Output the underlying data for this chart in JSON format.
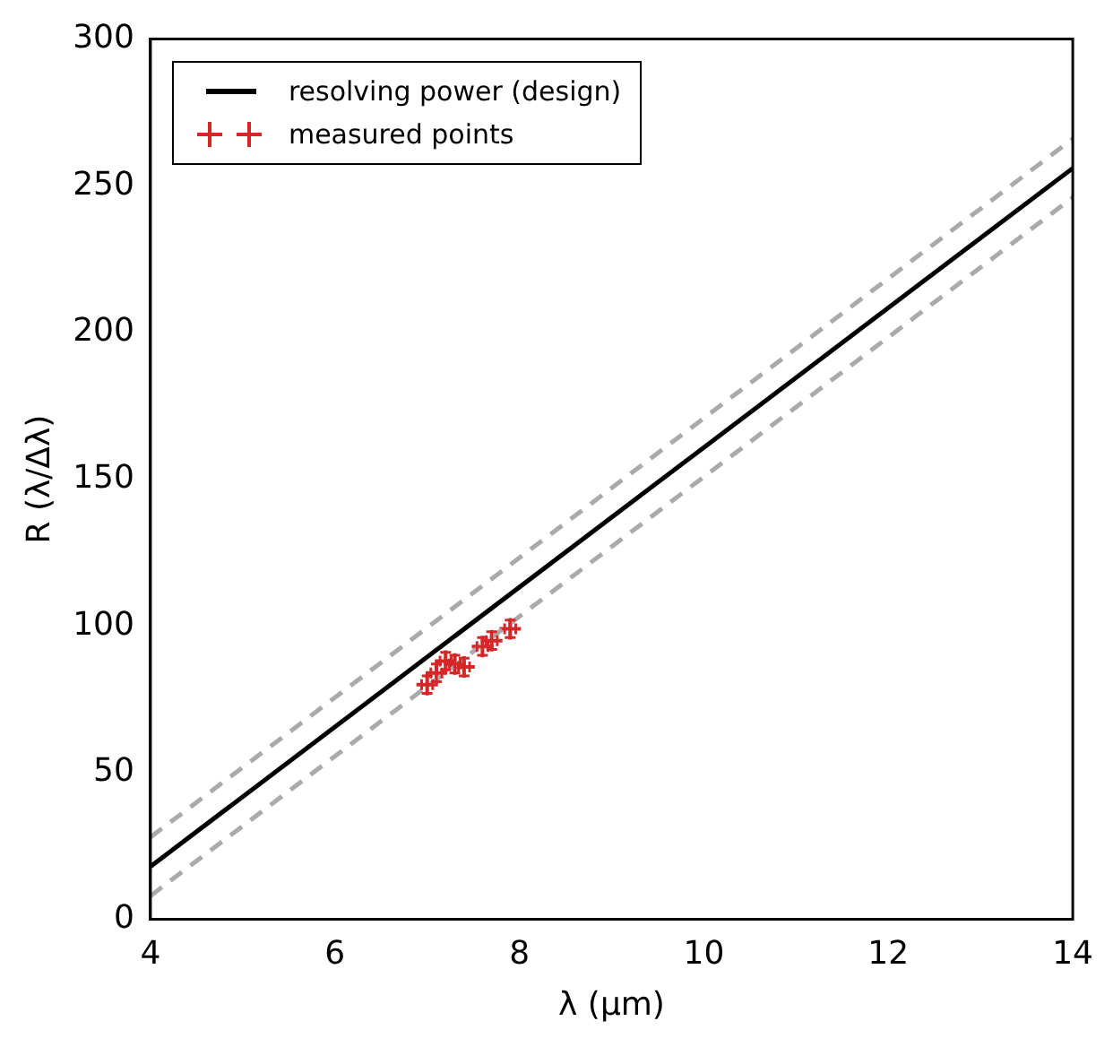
{
  "chart_data": {
    "type": "line",
    "xlabel": "λ (μm)",
    "ylabel": "R (λ/Δλ)",
    "xlim": [
      4,
      14
    ],
    "ylim": [
      0,
      300
    ],
    "xticks": [
      4,
      6,
      8,
      10,
      12,
      14
    ],
    "yticks": [
      0,
      50,
      100,
      150,
      200,
      250,
      300
    ],
    "legend": "top left",
    "series": [
      {
        "name": "resolving power (design)",
        "color": "#000000",
        "x": [
          4,
          14
        ],
        "values": [
          18,
          256
        ],
        "line_style": "solid"
      },
      {
        "color": "#aaaaaa",
        "x": [
          4,
          14
        ],
        "values": [
          28,
          266
        ],
        "line_style": "dashed"
      },
      {
        "color": "#aaaaaa",
        "x": [
          4,
          14
        ],
        "values": [
          8,
          246
        ],
        "line_style": "dashed"
      },
      {
        "name": "measured points",
        "type": "scatter",
        "color": "#d62728",
        "marker": "cross",
        "x": [
          7.0,
          7.1,
          7.2,
          7.3,
          7.4,
          7.6,
          7.7,
          7.9
        ],
        "values": [
          80,
          84,
          88,
          87,
          86,
          93,
          95,
          99
        ],
        "errors": [
          3,
          3,
          3,
          3,
          3,
          3,
          3,
          3
        ],
        "xerrors": [
          0.06,
          0.06,
          0.06,
          0.06,
          0.06,
          0.06,
          0.06,
          0.06
        ]
      }
    ]
  }
}
